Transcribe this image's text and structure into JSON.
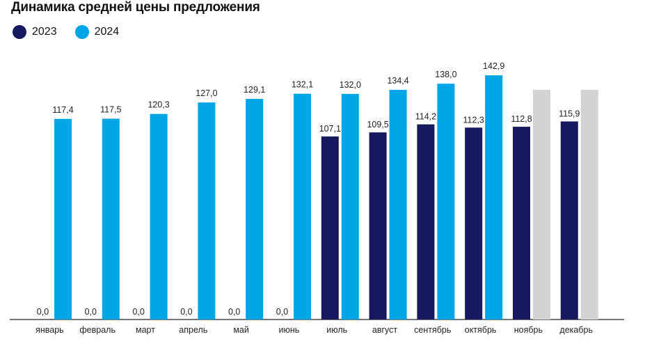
{
  "title": "Динамика средней цены предложения",
  "colors": {
    "series2023": "#17195e",
    "series2024": "#00a5e6",
    "placeholder": "#d3d3d3",
    "axis": "#222222"
  },
  "chart_data": {
    "type": "bar",
    "title": "Динамика средней цены предложения",
    "xlabel": "",
    "ylabel": "",
    "ylim": [
      0,
      150
    ],
    "grid": false,
    "legend_position": "top-left",
    "categories": [
      "январь",
      "февраль",
      "март",
      "апрель",
      "май",
      "июнь",
      "июль",
      "август",
      "сентябрь",
      "октябрь",
      "ноябрь",
      "декабрь"
    ],
    "series": [
      {
        "name": "2023",
        "values": [
          0.0,
          0.0,
          0.0,
          0.0,
          0.0,
          0.0,
          107.1,
          109.5,
          114.2,
          112.3,
          112.8,
          115.9
        ],
        "labels": [
          "0,0",
          "0,0",
          "0,0",
          "0,0",
          "0,0",
          "0,0",
          "107,1",
          "109,5",
          "114,2",
          "112,3",
          "112,8",
          "115,9"
        ]
      },
      {
        "name": "2024",
        "values": [
          117.4,
          117.5,
          120.3,
          127.0,
          129.1,
          132.1,
          132.0,
          134.4,
          138.0,
          142.9,
          null,
          null
        ],
        "labels": [
          "117,4",
          "117,5",
          "120,3",
          "127,0",
          "129,1",
          "132,1",
          "132,0",
          "134,4",
          "138,0",
          "142,9",
          "",
          ""
        ]
      }
    ],
    "placeholder_bars": {
      "series": "2024",
      "categories": [
        "ноябрь",
        "декабрь"
      ],
      "values": [
        134.4,
        134.4
      ]
    }
  }
}
